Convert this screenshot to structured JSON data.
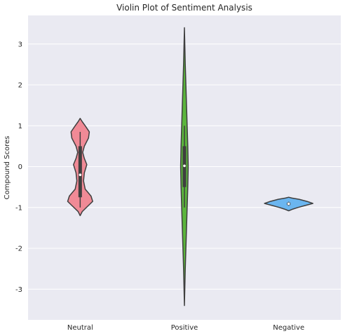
{
  "chart_data": {
    "type": "violin",
    "title": "Violin Plot of Sentiment Analysis",
    "xlabel": "",
    "ylabel": "Compound Scores",
    "ylim": [
      -3.75,
      3.7
    ],
    "yticks": [
      -3,
      -2,
      -1,
      0,
      1,
      2,
      3
    ],
    "grid": true,
    "background": "#eaeaf2",
    "categories": [
      "Neutral",
      "Positive",
      "Negative"
    ],
    "violins": [
      {
        "category": "Neutral",
        "color": "#f08a96",
        "profile": [
          [
            -1.2,
            0.0
          ],
          [
            -1.1,
            0.05
          ],
          [
            -0.95,
            0.2
          ],
          [
            -0.85,
            0.3
          ],
          [
            -0.72,
            0.26
          ],
          [
            -0.55,
            0.12
          ],
          [
            -0.35,
            0.08
          ],
          [
            -0.15,
            0.1
          ],
          [
            0.05,
            0.16
          ],
          [
            0.2,
            0.1
          ],
          [
            0.35,
            0.06
          ],
          [
            0.5,
            0.1
          ],
          [
            0.7,
            0.2
          ],
          [
            0.85,
            0.22
          ],
          [
            1.0,
            0.12
          ],
          [
            1.1,
            0.05
          ],
          [
            1.18,
            0.0
          ]
        ],
        "box": [
          -0.75,
          0.5
        ],
        "whisker": [
          -1.0,
          0.85
        ],
        "median": -0.2
      },
      {
        "category": "Positive",
        "color": "#5bb53c",
        "profile": [
          [
            -3.4,
            0.0
          ],
          [
            -2.5,
            0.02
          ],
          [
            -1.5,
            0.05
          ],
          [
            -0.5,
            0.08
          ],
          [
            0.0,
            0.09
          ],
          [
            0.5,
            0.08
          ],
          [
            1.5,
            0.05
          ],
          [
            2.5,
            0.02
          ],
          [
            3.4,
            0.0
          ]
        ],
        "box": [
          -0.5,
          0.5
        ],
        "whisker": [
          -1.0,
          1.0
        ],
        "median": 0.02
      },
      {
        "category": "Negative",
        "color": "#6bb6f0",
        "profile": [
          [
            -1.08,
            0.0
          ],
          [
            -1.04,
            0.1
          ],
          [
            -1.0,
            0.22
          ],
          [
            -0.95,
            0.4
          ],
          [
            -0.9,
            0.58
          ],
          [
            -0.85,
            0.44
          ],
          [
            -0.8,
            0.25
          ],
          [
            -0.77,
            0.08
          ],
          [
            -0.75,
            0.0
          ]
        ],
        "box": [
          -0.94,
          -0.88
        ],
        "whisker": [
          -0.96,
          -0.86
        ],
        "median": -0.91
      }
    ]
  }
}
